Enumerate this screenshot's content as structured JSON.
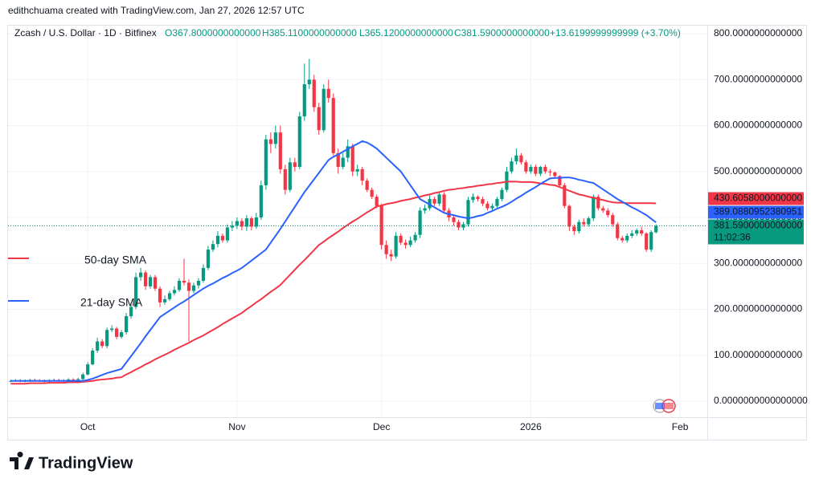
{
  "chart_data": {
    "type": "candlestick",
    "caption": "edithchuama created with TradingView.com, Jan 27, 2026 12:57 UTC",
    "title": "Zcash / U.S. Dollar · 1D · Bitfinex",
    "header": {
      "open": "O367.8000000000000",
      "high": "H385.1100000000000",
      "low": "L365.1200000000000",
      "close": "C381.5900000000000",
      "change": "+13.6199999999999 (+3.70%)"
    },
    "up_color": "#089981",
    "down_color": "#f23645",
    "last_label": "381.5900000000000",
    "countdown": "11:02:36",
    "grid": true,
    "categories": [
      null,
      null,
      null,
      null,
      null,
      null,
      null,
      null,
      null,
      null,
      null,
      null,
      null,
      null,
      null,
      null,
      "Oct",
      null,
      null,
      null,
      null,
      null,
      null,
      null,
      null,
      null,
      null,
      null,
      null,
      null,
      null,
      null,
      null,
      null,
      null,
      null,
      null,
      null,
      null,
      null,
      null,
      null,
      null,
      null,
      null,
      null,
      null,
      "Nov",
      null,
      null,
      null,
      null,
      null,
      null,
      null,
      null,
      null,
      null,
      null,
      null,
      null,
      null,
      null,
      null,
      null,
      null,
      null,
      null,
      null,
      null,
      null,
      null,
      null,
      null,
      null,
      null,
      null,
      "Dec",
      null,
      null,
      null,
      null,
      null,
      null,
      null,
      null,
      null,
      null,
      null,
      null,
      null,
      null,
      null,
      null,
      null,
      null,
      null,
      null,
      null,
      null,
      null,
      null,
      null,
      null,
      null,
      null,
      null,
      null,
      "2026",
      null,
      null,
      null,
      null,
      null,
      null,
      null,
      null,
      null,
      null,
      null,
      null,
      null,
      null,
      null,
      null,
      null,
      null,
      null,
      null,
      null,
      null,
      null,
      null,
      null,
      null,
      null,
      null,
      null,
      null,
      "Feb"
    ],
    "open": [
      43,
      44,
      45,
      43,
      44,
      46,
      45,
      44,
      43,
      45,
      46,
      44,
      45,
      47,
      46,
      48,
      58,
      80,
      110,
      130,
      120,
      155,
      158,
      140,
      150,
      185,
      205,
      270,
      280,
      250,
      270,
      245,
      215,
      222,
      235,
      242,
      262,
      258,
      240,
      252,
      262,
      290,
      330,
      342,
      360,
      350,
      378,
      382,
      392,
      380,
      398,
      380,
      400,
      470,
      570,
      560,
      585,
      505,
      460,
      520,
      510,
      620,
      690,
      700,
      640,
      590,
      680,
      660,
      540,
      510,
      530,
      555,
      500,
      505,
      480,
      460,
      445,
      425,
      340,
      320,
      315,
      360,
      345,
      340,
      350,
      362,
      415,
      420,
      440,
      430,
      450,
      415,
      400,
      390,
      378,
      385,
      438,
      445,
      440,
      430,
      420,
      425,
      440,
      460,
      500,
      522,
      535,
      520,
      500,
      510,
      495,
      510,
      500,
      498,
      490,
      470,
      425,
      380,
      370,
      390,
      385,
      398,
      445,
      420,
      415,
      405,
      385,
      355,
      350,
      360,
      365,
      372,
      365,
      330,
      367.8,
      null,
      null,
      null,
      null,
      null
    ],
    "high": [
      47,
      48,
      48,
      47,
      49,
      49,
      48,
      47,
      48,
      49,
      49,
      48,
      50,
      50,
      51,
      62,
      85,
      115,
      138,
      135,
      160,
      165,
      162,
      155,
      192,
      215,
      280,
      290,
      285,
      275,
      275,
      250,
      230,
      240,
      250,
      268,
      310,
      265,
      258,
      268,
      298,
      338,
      350,
      370,
      365,
      385,
      392,
      400,
      398,
      405,
      402,
      410,
      480,
      580,
      585,
      600,
      600,
      515,
      530,
      530,
      630,
      735,
      745,
      710,
      650,
      690,
      700,
      670,
      550,
      540,
      570,
      560,
      515,
      510,
      485,
      465,
      450,
      430,
      350,
      330,
      368,
      365,
      352,
      358,
      368,
      422,
      428,
      448,
      445,
      456,
      455,
      420,
      405,
      395,
      390,
      445,
      452,
      448,
      445,
      435,
      430,
      445,
      465,
      510,
      530,
      550,
      540,
      525,
      515,
      515,
      512,
      515,
      505,
      500,
      492,
      475,
      428,
      385,
      395,
      398,
      402,
      450,
      450,
      425,
      420,
      410,
      390,
      360,
      365,
      372,
      376,
      380,
      368,
      372,
      385.11,
      null,
      null,
      null,
      null,
      null
    ],
    "low": [
      41,
      42,
      41,
      41,
      42,
      43,
      42,
      41,
      41,
      43,
      42,
      42,
      43,
      44,
      44,
      46,
      56,
      78,
      105,
      115,
      115,
      150,
      135,
      136,
      145,
      180,
      200,
      262,
      242,
      245,
      240,
      205,
      210,
      218,
      230,
      238,
      252,
      130,
      235,
      245,
      258,
      285,
      325,
      335,
      345,
      345,
      370,
      375,
      372,
      370,
      372,
      375,
      395,
      460,
      540,
      550,
      495,
      450,
      455,
      500,
      505,
      610,
      680,
      630,
      580,
      585,
      650,
      535,
      495,
      505,
      520,
      490,
      490,
      470,
      455,
      440,
      420,
      330,
      310,
      305,
      310,
      340,
      332,
      335,
      345,
      355,
      408,
      415,
      425,
      425,
      410,
      392,
      382,
      372,
      372,
      380,
      432,
      435,
      425,
      415,
      412,
      420,
      435,
      455,
      495,
      515,
      515,
      495,
      495,
      490,
      490,
      495,
      490,
      485,
      465,
      420,
      370,
      362,
      365,
      380,
      380,
      392,
      415,
      410,
      400,
      380,
      350,
      345,
      345,
      355,
      360,
      360,
      325,
      325,
      365.12,
      null,
      null,
      null,
      null,
      null
    ],
    "close": [
      44,
      45,
      43,
      44,
      46,
      45,
      44,
      43,
      45,
      46,
      44,
      45,
      47,
      46,
      48,
      58,
      80,
      110,
      130,
      120,
      155,
      158,
      140,
      150,
      185,
      205,
      270,
      280,
      250,
      270,
      245,
      215,
      222,
      235,
      242,
      262,
      258,
      240,
      252,
      262,
      290,
      330,
      342,
      360,
      350,
      378,
      382,
      392,
      380,
      398,
      380,
      400,
      470,
      570,
      560,
      585,
      505,
      460,
      520,
      510,
      620,
      690,
      700,
      640,
      590,
      680,
      660,
      540,
      510,
      530,
      555,
      500,
      505,
      480,
      460,
      445,
      425,
      340,
      320,
      315,
      360,
      345,
      340,
      350,
      362,
      415,
      420,
      440,
      430,
      450,
      415,
      400,
      390,
      378,
      385,
      438,
      445,
      440,
      430,
      420,
      425,
      440,
      460,
      500,
      522,
      535,
      520,
      500,
      510,
      495,
      510,
      500,
      498,
      490,
      470,
      425,
      380,
      370,
      390,
      385,
      398,
      445,
      420,
      415,
      405,
      385,
      355,
      350,
      360,
      365,
      372,
      365,
      330,
      368,
      381.59,
      null,
      null,
      null,
      null,
      null
    ],
    "series": [
      {
        "name": "50-day SMA",
        "color": "#f23645",
        "last_label": "430.6058000000000",
        "values": [
          38,
          38,
          38,
          38,
          39,
          39,
          39,
          39,
          40,
          40,
          40,
          40,
          41,
          41,
          41,
          42,
          43,
          44,
          46,
          47,
          48,
          49,
          51,
          52,
          58,
          63,
          69,
          74,
          80,
          85,
          91,
          96,
          101,
          106,
          112,
          117,
          122,
          127,
          133,
          138,
          143,
          149,
          155,
          161,
          168,
          174,
          180,
          186,
          192,
          200,
          207,
          215,
          222,
          230,
          238,
          245,
          253,
          264,
          275,
          286,
          297,
          307,
          318,
          329,
          340,
          347,
          355,
          362,
          369,
          377,
          384,
          391,
          397,
          404,
          411,
          417,
          424,
          426,
          429,
          431,
          433,
          436,
          438,
          440,
          443,
          445,
          448,
          450,
          453,
          455,
          458,
          460,
          461,
          463,
          464,
          466,
          467,
          469,
          470,
          472,
          473,
          475,
          476,
          478,
          478,
          478,
          477,
          477,
          477,
          476,
          474,
          473,
          471,
          470,
          466,
          462,
          458,
          454,
          450,
          448,
          445,
          443,
          440,
          438,
          435,
          433,
          432,
          432,
          431,
          431,
          431,
          431,
          431,
          431,
          430.6058,
          null,
          null,
          null,
          null,
          null
        ]
      },
      {
        "name": "21-day SMA",
        "color": "#2962ff",
        "last_label": "389.0880952380951",
        "values": [
          44,
          44,
          44,
          44,
          44,
          44,
          44,
          44,
          44,
          44,
          44,
          44,
          44,
          44,
          44,
          44,
          46,
          49,
          53,
          57,
          61,
          64,
          67,
          70,
          84,
          98,
          112,
          126,
          141,
          155,
          169,
          183,
          190,
          197,
          204,
          211,
          217,
          224,
          231,
          238,
          245,
          251,
          256,
          262,
          268,
          273,
          279,
          284,
          290,
          298,
          306,
          314,
          322,
          330,
          345,
          360,
          375,
          391,
          407,
          423,
          439,
          455,
          469,
          483,
          497,
          511,
          525,
          532,
          537,
          543,
          549,
          555,
          560,
          566,
          563,
          557,
          550,
          540,
          530,
          520,
          510,
          500,
          485,
          470,
          455,
          440,
          434,
          428,
          422,
          416,
          410,
          407,
          405,
          402,
          400,
          398,
          400,
          403,
          405,
          410,
          414,
          419,
          423,
          428,
          434,
          441,
          447,
          454,
          460,
          466,
          473,
          479,
          485,
          486,
          486,
          487,
          487,
          485,
          482,
          480,
          477,
          475,
          468,
          461,
          454,
          447,
          440,
          434,
          428,
          422,
          417,
          411,
          405,
          397,
          389.0880952380951,
          null,
          null,
          null,
          null,
          null
        ]
      }
    ],
    "ylim": [
      -35,
      817.5
    ],
    "yticks": [
      {
        "value": 0,
        "label": "0.0000000000000000"
      },
      {
        "value": 100,
        "label": "100.0000000000000"
      },
      {
        "value": 200,
        "label": "200.0000000000000"
      },
      {
        "value": 300,
        "label": "300.0000000000000"
      },
      {
        "value": 400,
        "label": "400.0000000000000"
      },
      {
        "value": 500,
        "label": "500.0000000000000"
      },
      {
        "value": 600,
        "label": "600.0000000000000"
      },
      {
        "value": 700,
        "label": "700.0000000000000"
      },
      {
        "value": 800,
        "label": "800.0000000000000"
      }
    ]
  },
  "footer": {
    "brand": "TradingView"
  }
}
